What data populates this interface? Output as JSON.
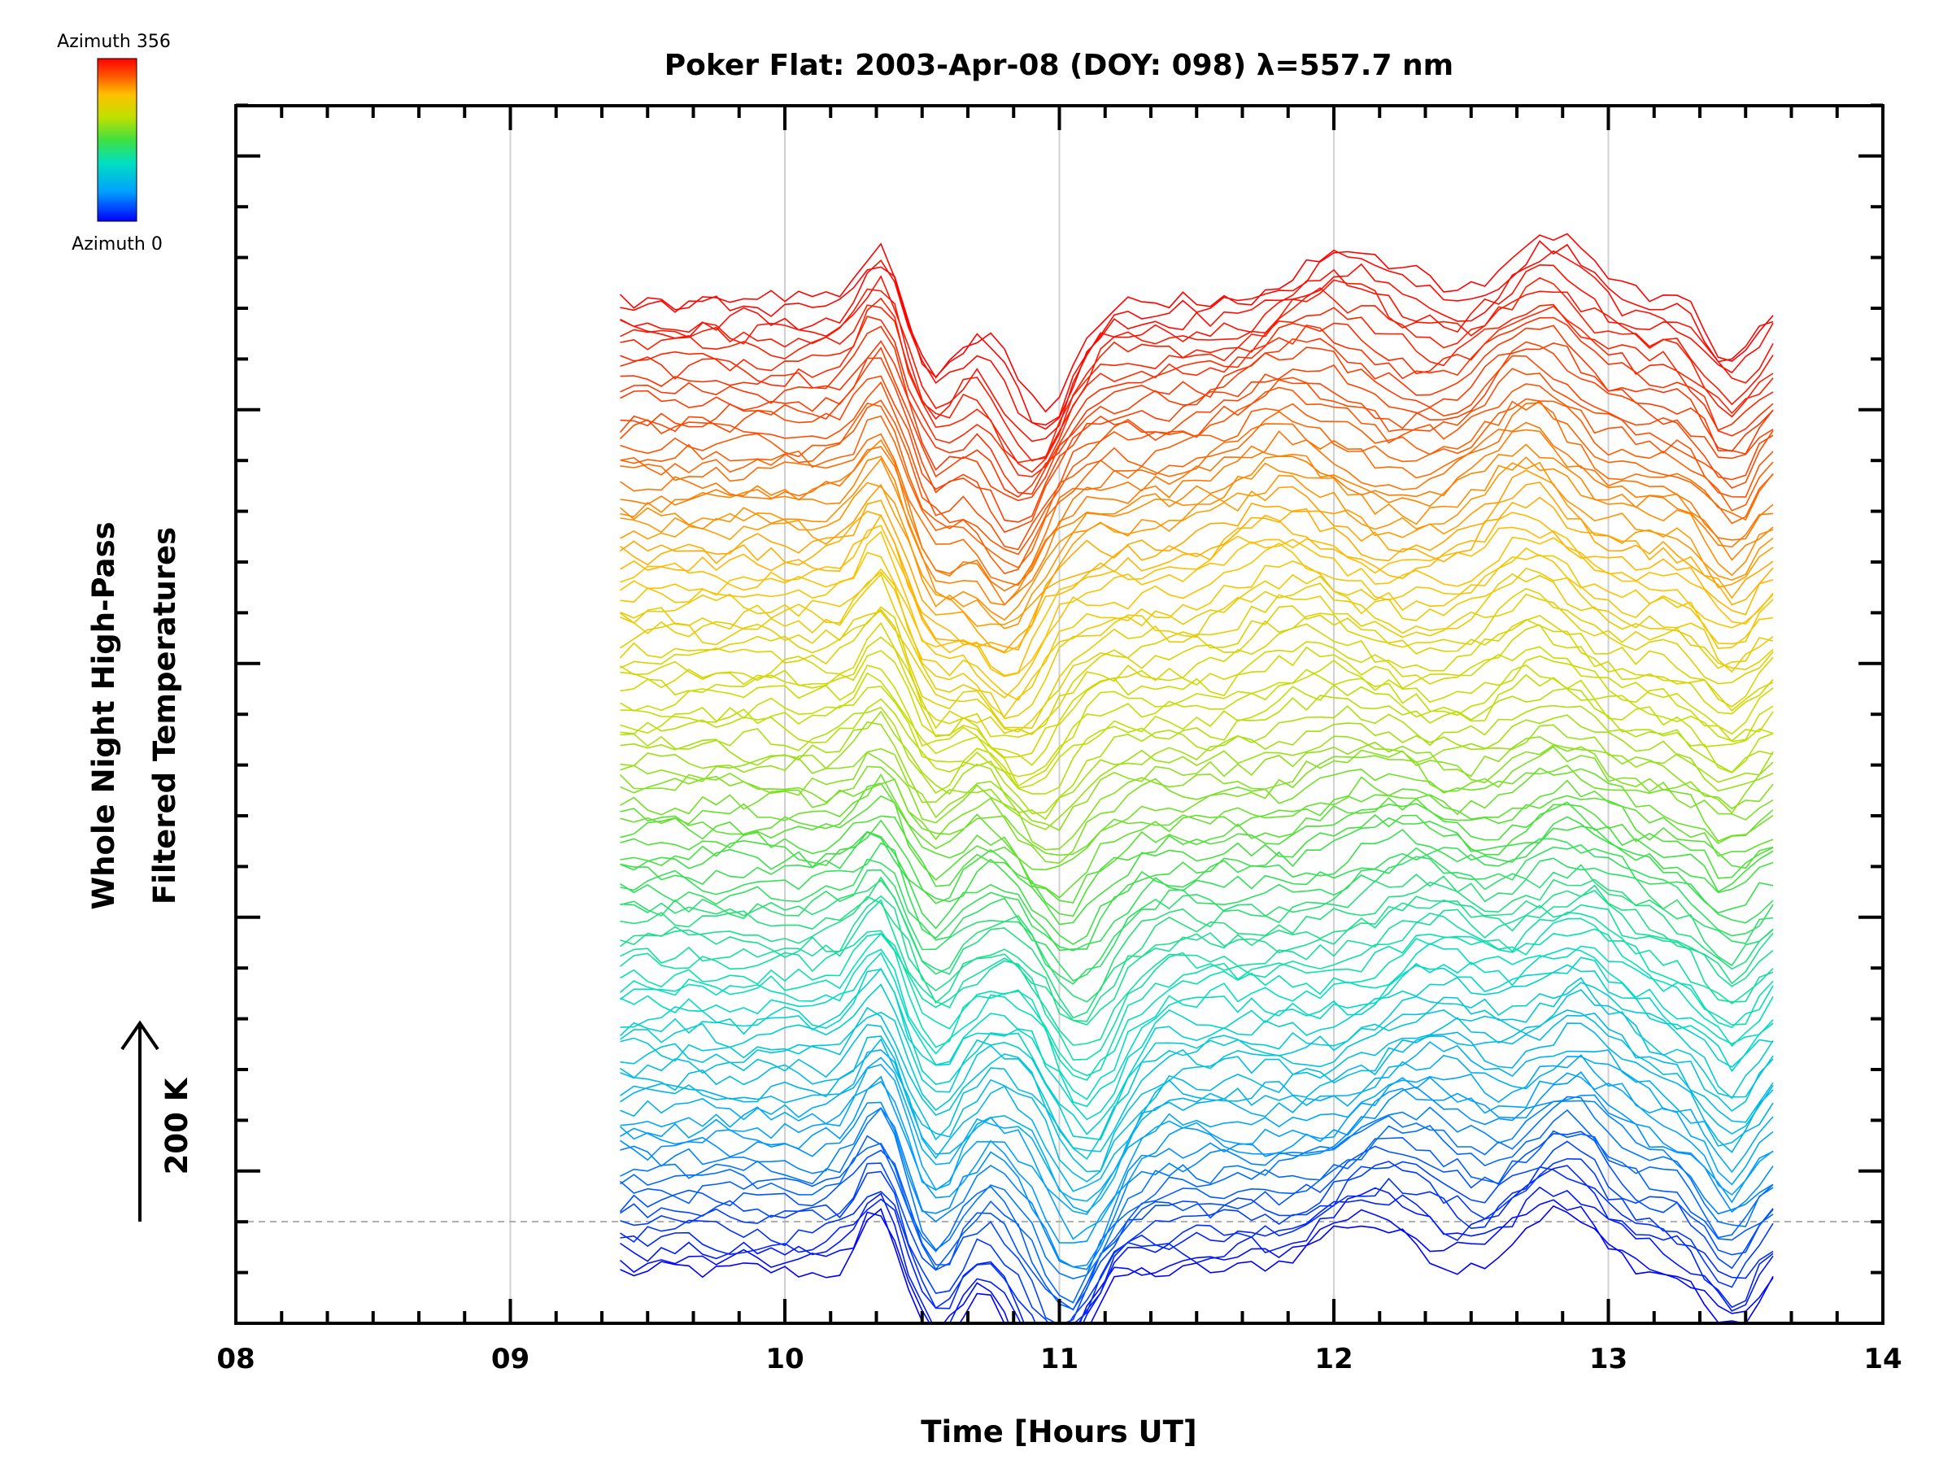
{
  "chart_data": {
    "type": "line",
    "title": "Poker Flat: 2003-Apr-08 (DOY: 098) λ=557.7 nm",
    "xlabel": "Time [Hours UT]",
    "ylabel_lines": [
      "Whole Night High-Pass",
      "Filtered Temperatures"
    ],
    "xlim": [
      8,
      14
    ],
    "x_ticks": [
      "08",
      "09",
      "10",
      "11",
      "12",
      "13",
      "14"
    ],
    "x_grid": true,
    "y_scale_label": "200 K",
    "y_scale_arrow_kelvin": 200,
    "baseline_dashed": true,
    "colorbar": {
      "top_label": "Azimuth 356",
      "bottom_label": "Azimuth 0",
      "colormap": "rainbow (blue→cyan→green→yellow→red)",
      "range": [
        0,
        356
      ]
    },
    "series_count": 96,
    "azimuth_spacing_deg": 3.75,
    "offset_per_series_K": 25,
    "time_range_hours": [
      9.4,
      13.6
    ],
    "sample_interval_hours": 0.05,
    "note_y_values": "Each trace is a high-pass filtered temperature time series stacked with a constant vertical offset per azimuth; values are temperature perturbations in Kelvin."
  },
  "colors": {
    "grid": "#d0d0d0",
    "axis": "#000000",
    "baseline": "#b0b0b0",
    "colormap_stops": [
      "#0000ff",
      "#00a0ff",
      "#00e0c0",
      "#40e040",
      "#c0e000",
      "#ffc000",
      "#ff5000",
      "#ff0000"
    ]
  }
}
